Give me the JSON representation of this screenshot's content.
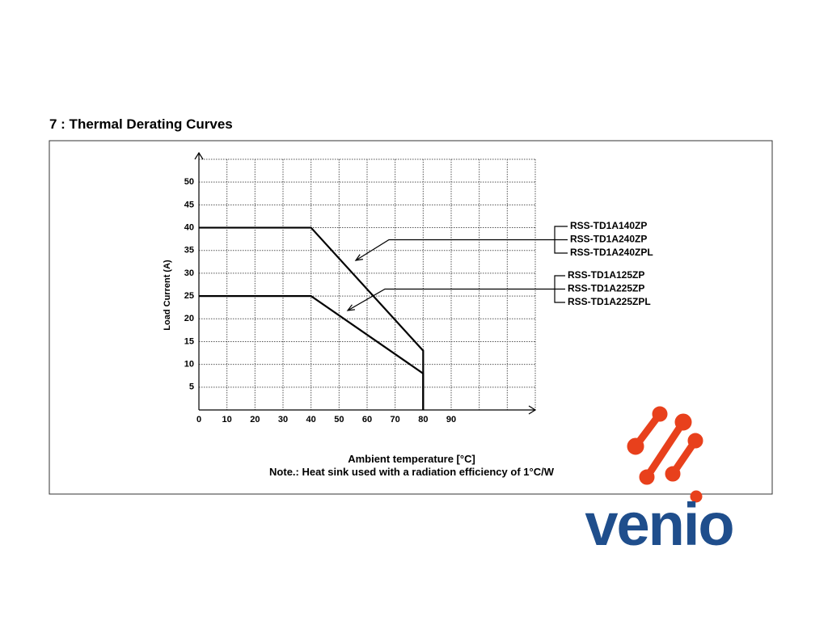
{
  "chart_data": {
    "type": "line",
    "title": "7 : Thermal Derating Curves",
    "x_label": "Ambient temperature [°C]",
    "note": "Note.: Heat sink used with a radiation efficiency of 1°C/W",
    "y_label": "Load Current (A)",
    "xlim": [
      0,
      120
    ],
    "xticks": [
      0,
      10,
      20,
      30,
      40,
      50,
      60,
      70,
      80,
      90
    ],
    "ylim": [
      0,
      55
    ],
    "yticks": [
      5,
      10,
      15,
      20,
      25,
      30,
      35,
      40,
      45,
      50
    ],
    "grid": true,
    "series": [
      {
        "models": [
          "RSS-TD1A140ZP",
          "RSS-TD1A240ZP",
          "RSS-TD1A240ZPL"
        ],
        "color": "#000000",
        "x": [
          0,
          40,
          80,
          80
        ],
        "values": [
          40,
          40,
          13,
          0
        ]
      },
      {
        "models": [
          "RSS-TD1A125ZP",
          "RSS-TD1A225ZP",
          "RSS-TD1A225ZPL"
        ],
        "color": "#000000",
        "x": [
          0,
          40,
          80,
          80
        ],
        "values": [
          25,
          25,
          8,
          0
        ]
      }
    ]
  },
  "logo": "venio"
}
